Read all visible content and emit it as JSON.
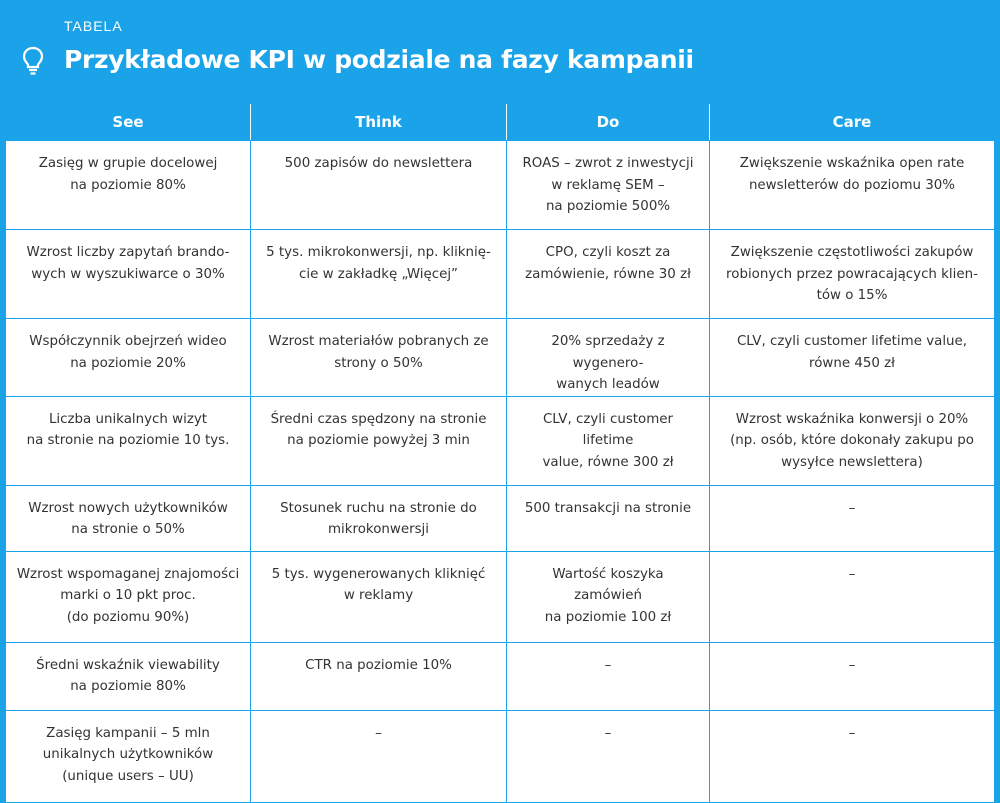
{
  "header": {
    "kicker": "TABELA",
    "title": "Przykładowe KPI w podziale na fazy kampanii",
    "icon": "lightbulb-icon"
  },
  "colors": {
    "accent": "#1aa3e8",
    "text": "#333333"
  },
  "table": {
    "columns": [
      "See",
      "Think",
      "Do",
      "Care"
    ],
    "rows": [
      [
        "Zasięg w grupie docelowej\nna poziomie 80%",
        "500 zapisów do newslettera",
        "ROAS – zwrot z inwestycji\nw reklamę SEM –\nna poziomie 500%",
        "Zwiększenie wskaźnika open rate\nnewsletterów do poziomu 30%"
      ],
      [
        "Wzrost liczby zapytań brando-\nwych w wyszukiwarce o 30%",
        "5 tys. mikrokonwersji, np. kliknię-\ncie w zakładkę „Więcej”",
        "CPO, czyli koszt za\nzamówienie, równe 30 zł",
        "Zwiększenie częstotliwości zakupów\nrobionych przez powracających klien-\ntów o 15%"
      ],
      [
        "Współczynnik obejrzeń wideo\nna poziomie 20%",
        "Wzrost materiałów pobranych ze\nstrony o 50%",
        "20% sprzedaży z wygenero-\nwanych leadów",
        "CLV, czyli customer lifetime value,\nrówne 450 zł"
      ],
      [
        "Liczba unikalnych wizyt\nna stronie na poziomie 10 tys.",
        "Średni czas spędzony na stronie\nna poziomie powyżej 3 min",
        "CLV, czyli customer lifetime\nvalue, równe 300 zł",
        "Wzrost wskaźnika konwersji o 20%\n(np. osób, które dokonały zakupu po\nwysyłce newslettera)"
      ],
      [
        "Wzrost nowych użytkowników\nna stronie o 50%",
        "Stosunek ruchu na stronie do\nmikrokonwersji",
        "500 transakcji na stronie",
        "–"
      ],
      [
        "Wzrost wspomaganej znajomości\nmarki o 10 pkt proc.\n(do poziomu 90%)",
        "5 tys. wygenerowanych kliknięć\nw reklamy",
        "Wartość koszyka zamówień\nna poziomie 100 zł",
        "–"
      ],
      [
        "Średni wskaźnik viewability\nna poziomie 80%",
        "CTR na poziomie 10%",
        "–",
        "–"
      ],
      [
        "Zasięg kampanii – 5 mln\nunikalnych użytkowników\n(unique users – UU)",
        "–",
        "–",
        "–"
      ]
    ]
  }
}
